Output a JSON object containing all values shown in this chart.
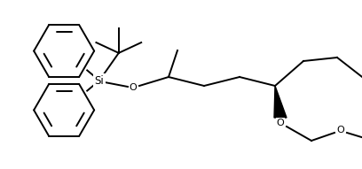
{
  "bg_color": "#ffffff",
  "line_color": "#000000",
  "line_width": 1.4,
  "figsize": [
    4.08,
    1.91
  ],
  "dpi": 100,
  "xlim": [
    0,
    408
  ],
  "ylim": [
    0,
    191
  ]
}
